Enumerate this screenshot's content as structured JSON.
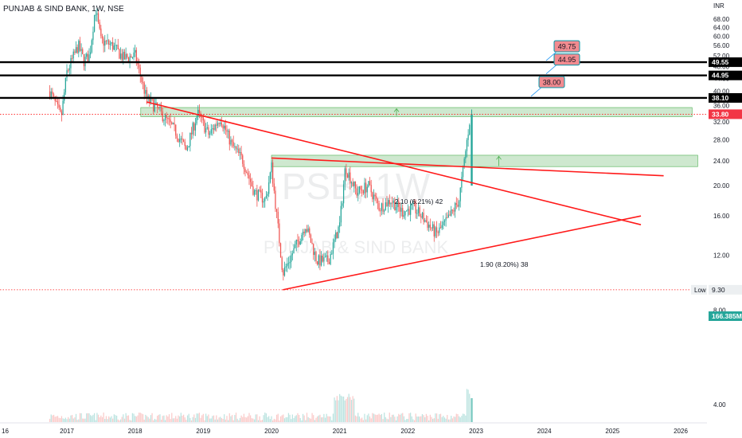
{
  "header": {
    "title": "PUNJAB & SIND BANK, 1W, NSE"
  },
  "watermark": {
    "symbol": "PSB, 1W",
    "name": "PUNJAB & SIND BANK"
  },
  "currency": "INR",
  "colors": {
    "up": "#26a69a",
    "down": "#ef5350",
    "trendline": "#ff1a1a",
    "zone": "#a5d6a7",
    "level": "#000000",
    "callout": "#f28b90"
  },
  "chart_data": {
    "type": "candlestick",
    "title": "PUNJAB & SIND BANK, 1W, NSE",
    "xlabel": "",
    "ylabel": "",
    "ylim": [
      3.5,
      76
    ],
    "scale": "log",
    "y_ticks": [
      "68.00",
      "64.00",
      "60.00",
      "56.00",
      "52.00",
      "48.00",
      "44.00",
      "40.00",
      "36.00",
      "32.00",
      "28.00",
      "24.00",
      "20.00",
      "16.00",
      "12.00",
      "8.00",
      "4.00"
    ],
    "x_ticks": [
      "16",
      "2017",
      "2018",
      "2019",
      "2020",
      "2021",
      "2022",
      "2023",
      "2024",
      "2025",
      "2026"
    ],
    "price_path": [
      [
        "2016-10",
        40
      ],
      [
        "2016-12",
        33
      ],
      [
        "2017-01",
        46
      ],
      [
        "2017-03",
        56
      ],
      [
        "2017-04",
        50
      ],
      [
        "2017-05",
        52
      ],
      [
        "2017-06",
        74
      ],
      [
        "2017-07",
        58
      ],
      [
        "2017-09",
        56
      ],
      [
        "2017-11",
        51
      ],
      [
        "2018-01",
        52
      ],
      [
        "2018-03",
        38
      ],
      [
        "2018-05",
        35
      ],
      [
        "2018-08",
        30
      ],
      [
        "2018-10",
        26
      ],
      [
        "2018-12",
        34
      ],
      [
        "2019-02",
        29
      ],
      [
        "2019-04",
        33
      ],
      [
        "2019-06",
        27
      ],
      [
        "2019-08",
        24
      ],
      [
        "2019-10",
        19
      ],
      [
        "2019-12",
        18
      ],
      [
        "2020-01",
        23
      ],
      [
        "2020-03",
        10.5
      ],
      [
        "2020-05",
        12.5
      ],
      [
        "2020-07",
        15
      ],
      [
        "2020-09",
        11.5
      ],
      [
        "2020-11",
        11.5
      ],
      [
        "2021-01",
        15
      ],
      [
        "2021-02",
        23
      ],
      [
        "2021-04",
        19
      ],
      [
        "2021-06",
        20
      ],
      [
        "2021-08",
        17
      ],
      [
        "2021-10",
        18
      ],
      [
        "2021-12",
        16.5
      ],
      [
        "2022-02",
        17
      ],
      [
        "2022-04",
        15.5
      ],
      [
        "2022-06",
        14
      ],
      [
        "2022-08",
        15.5
      ],
      [
        "2022-10",
        18
      ],
      [
        "2022-11",
        24.5
      ],
      [
        "2022-12",
        33.8
      ]
    ],
    "horizontal_levels": [
      {
        "price": 49.55,
        "label": "49.55"
      },
      {
        "price": 44.95,
        "label": "44.95"
      },
      {
        "price": 38.1,
        "label": "38.10"
      }
    ],
    "price_markers": [
      {
        "label": "33.80",
        "type": "last"
      },
      {
        "label": "166.385M",
        "type": "volume"
      },
      {
        "label": "9.30",
        "type": "low",
        "caption": "Low"
      }
    ],
    "callouts": [
      {
        "label": "49.75",
        "price": 49.55
      },
      {
        "label": "44.95",
        "price": 44.95
      },
      {
        "label": "38.00",
        "price": 38.1
      }
    ],
    "zones": [
      {
        "from": 33.2,
        "to": 35.5,
        "start": "2018-02",
        "end": "2026-03"
      },
      {
        "from": 23.0,
        "to": 25.0,
        "start": "2020-01",
        "end": "2026-04"
      }
    ],
    "trendlines": [
      {
        "from": [
          "2018-03",
          37
        ],
        "to": [
          "2025-06",
          15
        ]
      },
      {
        "from": [
          "2020-01",
          24.5
        ],
        "to": [
          "2025-10",
          21.5
        ]
      },
      {
        "from": [
          "2020-03",
          9.3
        ],
        "to": [
          "2025-06",
          16
        ]
      }
    ],
    "annotations": [
      {
        "text": "2.10 (6.21%) 42"
      },
      {
        "text": "1.90 (8.20%) 38"
      }
    ]
  }
}
